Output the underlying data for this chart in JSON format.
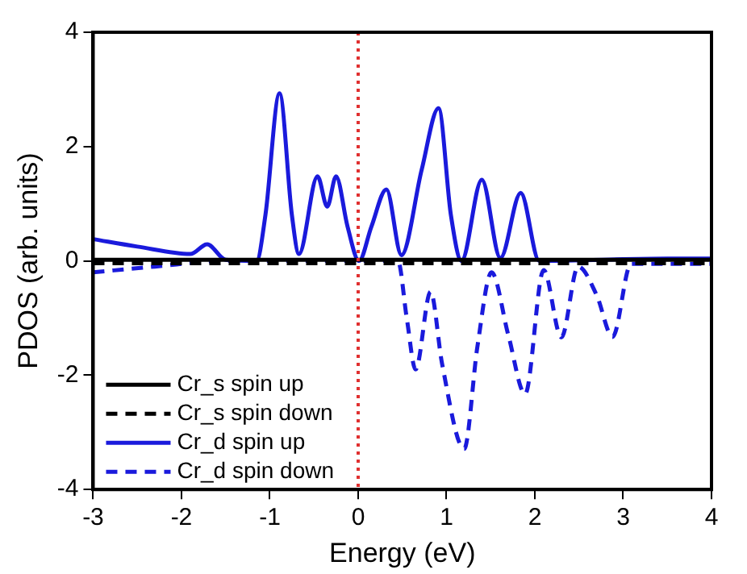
{
  "chart_data": {
    "type": "line",
    "xlabel": "Energy (eV)",
    "ylabel": "PDOS (arb. units)",
    "xlim": [
      -3,
      4
    ],
    "xticks": [
      -3,
      -2,
      -1,
      0,
      1,
      2,
      3,
      4
    ],
    "ylim": [
      -4,
      4
    ],
    "yticks": [
      -4,
      -2,
      0,
      2,
      4
    ],
    "grid": false,
    "legend": "bottom left",
    "marker": "none",
    "ref_lines": [
      {
        "axis": "x",
        "value": 0,
        "color": "#e03030",
        "line_style": "dotted"
      }
    ],
    "series": [
      {
        "name": "Cr_s spin up",
        "color": "#000000",
        "line_style": "solid",
        "x": [
          -3,
          4
        ],
        "values": [
          0.02,
          0.02
        ]
      },
      {
        "name": "Cr_s spin down",
        "color": "#000000",
        "line_style": "dashed",
        "x": [
          -3,
          4
        ],
        "values": [
          -0.04,
          -0.04
        ]
      },
      {
        "name": "Cr_d spin up",
        "color": "#1a1adc",
        "line_style": "solid",
        "x": [
          -3,
          -2.5,
          -1.9,
          -1.71,
          -1.5,
          -1.15,
          -1.05,
          -0.89,
          -0.75,
          -0.67,
          -0.46,
          -0.35,
          -0.25,
          -0.12,
          0.01,
          0.15,
          0.32,
          0.49,
          0.72,
          0.91,
          1.05,
          1.17,
          1.4,
          1.61,
          1.84,
          2.05,
          3.5,
          4
        ],
        "values": [
          0.38,
          0.25,
          0.12,
          0.29,
          0.02,
          0,
          0.8,
          2.93,
          0.8,
          0.12,
          1.48,
          0.95,
          1.48,
          0.6,
          0,
          0.6,
          1.25,
          0.1,
          1.6,
          2.67,
          0.8,
          0,
          1.42,
          0.05,
          1.19,
          0,
          0.04,
          0.04
        ]
      },
      {
        "name": "Cr_d spin down",
        "color": "#1a1adc",
        "line_style": "dashed",
        "x": [
          -3,
          -2.3,
          -1.5,
          0.45,
          0.55,
          0.65,
          0.82,
          0.95,
          1.2,
          1.35,
          1.51,
          1.7,
          1.89,
          2.1,
          2.3,
          2.49,
          2.7,
          2.88,
          3.09,
          4
        ],
        "values": [
          -0.2,
          -0.1,
          0,
          0,
          -1.0,
          -1.9,
          -0.54,
          -1.8,
          -3.29,
          -1.5,
          -0.2,
          -1.3,
          -2.33,
          -0.16,
          -1.34,
          -0.1,
          -0.6,
          -1.33,
          -0.05,
          -0.05
        ]
      }
    ]
  }
}
